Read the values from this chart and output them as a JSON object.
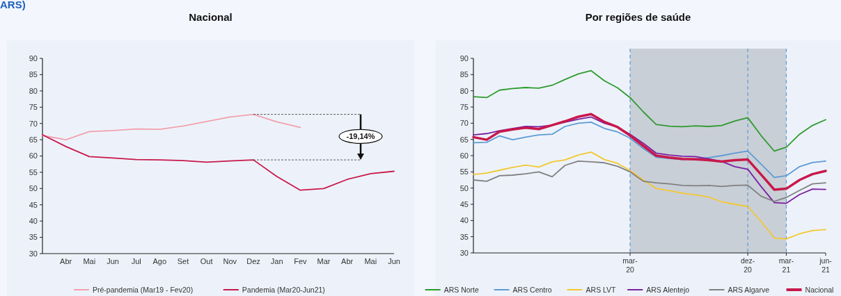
{
  "chart_data": [
    {
      "type": "line",
      "title": "Nacional",
      "annotations": [
        "ARS)",
        "-19,14%"
      ],
      "categories": [
        null,
        "Abr",
        "Mai",
        "Jun",
        "Jul",
        "Ago",
        "Set",
        "Out",
        "Nov",
        "Dez",
        "Jan",
        "Fev",
        "Mar",
        "Abr",
        "Mai",
        "Jun"
      ],
      "series": [
        {
          "name": "Pré-pandemia (Mar19 - Fev20)",
          "color": "#f2a0ad",
          "values": [
            66.3,
            65.0,
            67.5,
            67.8,
            68.3,
            68.2,
            69.2,
            70.6,
            72.0,
            72.8,
            70.5,
            68.8,
            null,
            null,
            null,
            null
          ]
        },
        {
          "name": "Pandemia (Mar20-Jun21)",
          "color": "#c8184a",
          "values": [
            66.5,
            62.9,
            59.8,
            59.4,
            58.9,
            58.8,
            58.6,
            58.1,
            58.5,
            58.8,
            53.7,
            49.5,
            50.0,
            52.8,
            54.6,
            55.3
          ]
        }
      ],
      "ylim": [
        30,
        90
      ],
      "yticks": [
        30,
        35,
        40,
        45,
        50,
        55,
        60,
        65,
        70,
        75,
        80,
        85,
        90
      ],
      "grid": false,
      "legend": "bottom",
      "marker": "none",
      "line_style": "solid"
    },
    {
      "type": "line",
      "title": "Por regiões de saúde",
      "x": [
        "2019-03",
        "2019-04",
        "2019-05",
        "2019-06",
        "2019-07",
        "2019-08",
        "2019-09",
        "2019-10",
        "2019-11",
        "2019-12",
        "2020-01",
        "2020-02",
        "2020-03",
        "2020-04",
        "2020-05",
        "2020-06",
        "2020-07",
        "2020-08",
        "2020-09",
        "2020-10",
        "2020-11",
        "2020-12",
        "2021-01",
        "2021-02",
        "2021-03",
        "2021-04",
        "2021-05",
        "2021-06"
      ],
      "xlim": [
        "2019-03",
        "2021-06"
      ],
      "xticks": [
        {
          "value": "2020-03",
          "label": "mar-20"
        },
        {
          "value": "2020-12",
          "label": "dez-20"
        },
        {
          "value": "2021-03",
          "label": "mar-21"
        },
        {
          "value": "2021-06",
          "label": "jun-21"
        }
      ],
      "series": [
        {
          "name": "ARS Norte",
          "color": "#2e9a2e",
          "values": [
            78.2,
            77.9,
            80.2,
            80.7,
            81.0,
            80.8,
            81.7,
            83.5,
            85.2,
            86.2,
            83.1,
            80.9,
            77.9,
            73.5,
            69.6,
            69.1,
            68.9,
            69.2,
            69.0,
            69.3,
            70.7,
            71.7,
            66.2,
            61.4,
            62.6,
            66.6,
            69.3,
            71.1
          ]
        },
        {
          "name": "ARS Centro",
          "color": "#5b9bd5",
          "values": [
            64.0,
            64.1,
            66.1,
            64.9,
            65.7,
            66.4,
            66.6,
            69.0,
            70.0,
            70.3,
            68.4,
            67.3,
            65.4,
            62.2,
            59.5,
            59.1,
            58.8,
            59.0,
            59.4,
            60.0,
            60.8,
            61.4,
            57.4,
            53.3,
            53.8,
            56.6,
            57.9,
            58.3
          ]
        },
        {
          "name": "ARS LVT",
          "color": "#f2c82f",
          "values": [
            54.2,
            54.6,
            55.5,
            56.4,
            57.1,
            56.5,
            58.1,
            58.7,
            60.2,
            61.1,
            58.8,
            57.6,
            55.4,
            52.5,
            49.9,
            49.2,
            48.4,
            47.9,
            47.2,
            45.8,
            45.0,
            44.3,
            39.7,
            34.6,
            34.3,
            35.9,
            36.9,
            37.2
          ]
        },
        {
          "name": "ARS Alentejo",
          "color": "#7b1fa2",
          "values": [
            66.4,
            66.8,
            67.7,
            68.4,
            69.0,
            68.9,
            69.4,
            70.3,
            71.2,
            71.9,
            70.0,
            68.8,
            66.6,
            63.8,
            60.8,
            60.2,
            59.8,
            59.7,
            59.0,
            58.2,
            56.6,
            55.8,
            50.5,
            45.5,
            45.3,
            48.0,
            49.7,
            49.6
          ]
        },
        {
          "name": "ARS Algarve",
          "color": "#808080",
          "values": [
            52.5,
            52.1,
            53.8,
            54.0,
            54.4,
            55.0,
            53.5,
            57.0,
            58.3,
            58.1,
            57.8,
            56.7,
            55.0,
            52.1,
            51.6,
            51.3,
            50.8,
            50.7,
            50.8,
            50.5,
            50.8,
            50.9,
            47.5,
            45.9,
            47.1,
            49.3,
            51.3,
            51.6
          ]
        },
        {
          "name": "Nacional",
          "color": "#c8184a",
          "values": [
            65.7,
            64.9,
            67.4,
            68.1,
            68.6,
            68.2,
            69.4,
            70.6,
            72.0,
            72.8,
            70.4,
            68.8,
            66.2,
            63.0,
            60.0,
            59.4,
            59.0,
            58.9,
            58.6,
            58.2,
            58.6,
            58.8,
            54.2,
            49.5,
            49.8,
            52.5,
            54.3,
            55.3
          ]
        }
      ],
      "ylim": [
        30,
        90
      ],
      "yticks": [
        30,
        35,
        40,
        45,
        50,
        55,
        60,
        65,
        70,
        75,
        80,
        85,
        90
      ],
      "grid": false,
      "legend": "bottom",
      "marker": "none",
      "line_style": "solid",
      "bands": [
        {
          "axis": "x",
          "from": "2020-03",
          "to": "2021-03",
          "color": "#c9cfd7"
        }
      ],
      "ref_lines": [
        {
          "axis": "x",
          "value": "2020-03",
          "color": "#5b9bd5",
          "line_style": "dashed"
        },
        {
          "axis": "x",
          "value": "2020-12",
          "color": "#5b9bd5",
          "line_style": "dashed"
        },
        {
          "axis": "x",
          "value": "2021-03",
          "color": "#5b9bd5",
          "line_style": "dashed"
        }
      ]
    }
  ]
}
